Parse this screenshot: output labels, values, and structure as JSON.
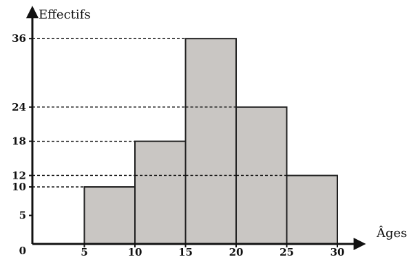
{
  "chart_data": {
    "type": "bar",
    "title": "",
    "xlabel": "Âges",
    "ylabel": "Effectifs",
    "xlim": [
      0,
      30
    ],
    "ylim": [
      0,
      40
    ],
    "x_ticks": [
      0,
      5,
      10,
      15,
      20,
      25,
      30
    ],
    "y_ticks": [
      5,
      10,
      12,
      18,
      24,
      36
    ],
    "bins": [
      {
        "from": 5,
        "to": 10,
        "value": 10
      },
      {
        "from": 10,
        "to": 15,
        "value": 18
      },
      {
        "from": 15,
        "to": 20,
        "value": 36
      },
      {
        "from": 20,
        "to": 25,
        "value": 24
      },
      {
        "from": 25,
        "to": 30,
        "value": 12
      }
    ],
    "guide_values": [
      10,
      12,
      18,
      24,
      36
    ],
    "grid": false,
    "legend": "none",
    "colors": {
      "bar_fill": "#c9c6c3",
      "bar_stroke": "#1f1f1f",
      "axis": "#111111"
    }
  }
}
